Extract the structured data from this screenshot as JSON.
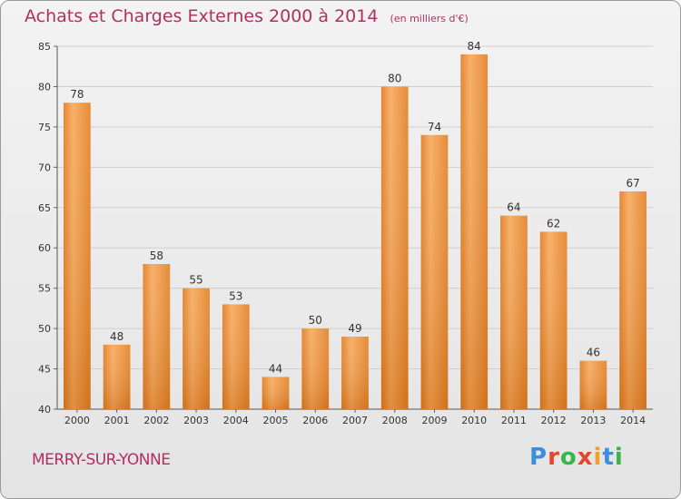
{
  "header": {
    "title": "Achats et Charges Externes 2000 à 2014",
    "unit_note": "(en milliers d'€)"
  },
  "footer": {
    "town": "MERRY-SUR-YONNE",
    "logo_text": "Proxiti",
    "logo_colors": [
      "#3a8fd6",
      "#e8462a",
      "#3ab54a",
      "#e8462a",
      "#f2a12c",
      "#3a8fd6",
      "#3ab54a"
    ]
  },
  "colors": {
    "title": "#b03060",
    "bar": "#f28e2c",
    "bar_light": "#f7a95a",
    "bar_dark": "#d8761a",
    "grid": "#cfcfcf"
  },
  "chart_data": {
    "type": "bar",
    "title": "Achats et Charges Externes 2000 à 2014",
    "subtitle": "(en milliers d'€)",
    "categories": [
      "2000",
      "2001",
      "2002",
      "2003",
      "2004",
      "2005",
      "2006",
      "2007",
      "2008",
      "2009",
      "2010",
      "2011",
      "2012",
      "2013",
      "2014"
    ],
    "values": [
      78,
      48,
      58,
      55,
      53,
      44,
      50,
      49,
      80,
      74,
      84,
      64,
      62,
      46,
      67
    ],
    "ylim": [
      40,
      85
    ],
    "yticks": [
      40,
      45,
      50,
      55,
      60,
      65,
      70,
      75,
      80,
      85
    ],
    "grid": true,
    "data_labels": true
  }
}
